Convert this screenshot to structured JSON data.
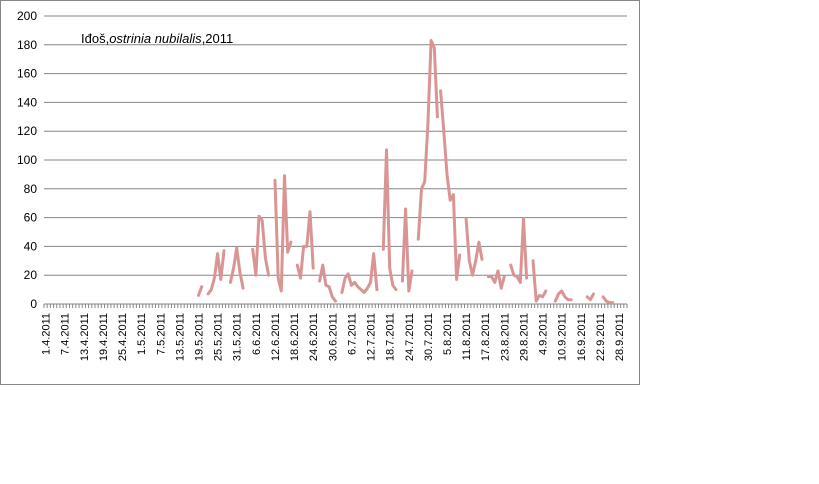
{
  "chart_data": {
    "type": "line",
    "title_parts": [
      "Iđoš,",
      "ostrinia nubilalis",
      ",2011"
    ],
    "title": "Iđoš,ostrinia nubilalis,2011",
    "xlabel": "",
    "ylabel": "",
    "ylim": [
      0,
      200
    ],
    "yticks": [
      "0",
      "20",
      "40",
      "60",
      "80",
      "100",
      "120",
      "140",
      "160",
      "180",
      "200"
    ],
    "xticks": [
      "1.4.2011",
      "7.4.2011",
      "13.4.2011",
      "19.4.2011",
      "25.4.2011",
      "1.5.2011",
      "7.5.2011",
      "13.5.2011",
      "19.5.2011",
      "25.5.2011",
      "31.5.2011",
      "6.6.2011",
      "12.6.2011",
      "18.6.2011",
      "24.6.2011",
      "30.6.2011",
      "6.7.2011",
      "12.7.2011",
      "18.7.2011",
      "24.7.2011",
      "30.7.2011",
      "5.8.2011",
      "11.8.2011",
      "17.8.2011",
      "23.8.2011",
      "29.8.2011",
      "4.9.2011",
      "10.9.2011",
      "16.9.2011",
      "22.9.2011",
      "28.9.2011"
    ],
    "grid": true,
    "legend": "none",
    "series_color": "#d99594",
    "series": [
      {
        "segments": [
          [
            [
              "2011-05-19",
              6
            ],
            [
              "2011-05-20",
              12
            ]
          ],
          [
            [
              "2011-05-22",
              7
            ],
            [
              "2011-05-23",
              10
            ],
            [
              "2011-05-24",
              18
            ],
            [
              "2011-05-25",
              35
            ],
            [
              "2011-05-26",
              17
            ],
            [
              "2011-05-27",
              37
            ]
          ],
          [
            [
              "2011-05-29",
              15
            ],
            [
              "2011-05-30",
              25
            ],
            [
              "2011-05-31",
              39
            ],
            [
              "2011-06-01",
              22
            ],
            [
              "2011-06-02",
              11
            ]
          ],
          [
            [
              "2011-06-05",
              38
            ],
            [
              "2011-06-06",
              20
            ],
            [
              "2011-06-07",
              61
            ],
            [
              "2011-06-08",
              58
            ],
            [
              "2011-06-09",
              32
            ],
            [
              "2011-06-10",
              20
            ]
          ],
          [
            [
              "2011-06-12",
              86
            ],
            [
              "2011-06-13",
              18
            ],
            [
              "2011-06-14",
              9
            ],
            [
              "2011-06-15",
              89
            ],
            [
              "2011-06-16",
              36
            ],
            [
              "2011-06-17",
              43
            ]
          ],
          [
            [
              "2011-06-19",
              27
            ],
            [
              "2011-06-20",
              18
            ],
            [
              "2011-06-21",
              40
            ],
            [
              "2011-06-22",
              40
            ],
            [
              "2011-06-23",
              64
            ],
            [
              "2011-06-24",
              25
            ]
          ],
          [
            [
              "2011-06-26",
              16
            ],
            [
              "2011-06-27",
              27
            ],
            [
              "2011-06-28",
              13
            ],
            [
              "2011-06-29",
              12
            ],
            [
              "2011-06-30",
              5
            ],
            [
              "2011-07-01",
              2
            ]
          ],
          [
            [
              "2011-07-03",
              8
            ],
            [
              "2011-07-04",
              18
            ],
            [
              "2011-07-05",
              21
            ],
            [
              "2011-07-06",
              13
            ],
            [
              "2011-07-07",
              15
            ],
            [
              "2011-07-08",
              12
            ],
            [
              "2011-07-09",
              10
            ],
            [
              "2011-07-10",
              8
            ],
            [
              "2011-07-11",
              11
            ],
            [
              "2011-07-12",
              15
            ],
            [
              "2011-07-13",
              35
            ],
            [
              "2011-07-14",
              10
            ]
          ],
          [
            [
              "2011-07-16",
              38
            ],
            [
              "2011-07-17",
              107
            ],
            [
              "2011-07-18",
              25
            ],
            [
              "2011-07-19",
              13
            ],
            [
              "2011-07-20",
              10
            ]
          ],
          [
            [
              "2011-07-22",
              16
            ],
            [
              "2011-07-23",
              66
            ],
            [
              "2011-07-24",
              9
            ],
            [
              "2011-07-25",
              23
            ]
          ],
          [
            [
              "2011-07-27",
              45
            ],
            [
              "2011-07-28",
              80
            ],
            [
              "2011-07-29",
              85
            ],
            [
              "2011-07-30",
              125
            ],
            [
              "2011-07-31",
              183
            ],
            [
              "2011-08-01",
              178
            ],
            [
              "2011-08-02",
              130
            ]
          ],
          [
            [
              "2011-08-03",
              148
            ],
            [
              "2011-08-04",
              120
            ],
            [
              "2011-08-05",
              90
            ],
            [
              "2011-08-06",
              72
            ],
            [
              "2011-08-07",
              76
            ],
            [
              "2011-08-08",
              17
            ],
            [
              "2011-08-09",
              34
            ]
          ],
          [
            [
              "2011-08-11",
              59
            ],
            [
              "2011-08-12",
              30
            ],
            [
              "2011-08-13",
              20
            ],
            [
              "2011-08-14",
              30
            ],
            [
              "2011-08-15",
              43
            ],
            [
              "2011-08-16",
              31
            ]
          ],
          [
            [
              "2011-08-18",
              19
            ],
            [
              "2011-08-19",
              19
            ],
            [
              "2011-08-20",
              15
            ],
            [
              "2011-08-21",
              23
            ],
            [
              "2011-08-22",
              11
            ],
            [
              "2011-08-23",
              19
            ]
          ],
          [
            [
              "2011-08-25",
              27
            ],
            [
              "2011-08-26",
              20
            ],
            [
              "2011-08-27",
              19
            ],
            [
              "2011-08-28",
              15
            ],
            [
              "2011-08-29",
              59
            ],
            [
              "2011-08-30",
              18
            ]
          ],
          [
            [
              "2011-09-01",
              30
            ],
            [
              "2011-09-02",
              2
            ],
            [
              "2011-09-03",
              6
            ],
            [
              "2011-09-04",
              5
            ],
            [
              "2011-09-05",
              9
            ]
          ],
          [
            [
              "2011-09-08",
              2
            ],
            [
              "2011-09-09",
              7
            ],
            [
              "2011-09-10",
              9
            ],
            [
              "2011-09-11",
              5
            ],
            [
              "2011-09-12",
              3
            ],
            [
              "2011-09-13",
              3
            ]
          ],
          [
            [
              "2011-09-18",
              5
            ],
            [
              "2011-09-19",
              3
            ],
            [
              "2011-09-20",
              7
            ]
          ],
          [
            [
              "2011-09-23",
              5
            ],
            [
              "2011-09-24",
              2
            ],
            [
              "2011-09-25",
              1
            ],
            [
              "2011-09-26",
              1
            ]
          ]
        ]
      }
    ]
  }
}
